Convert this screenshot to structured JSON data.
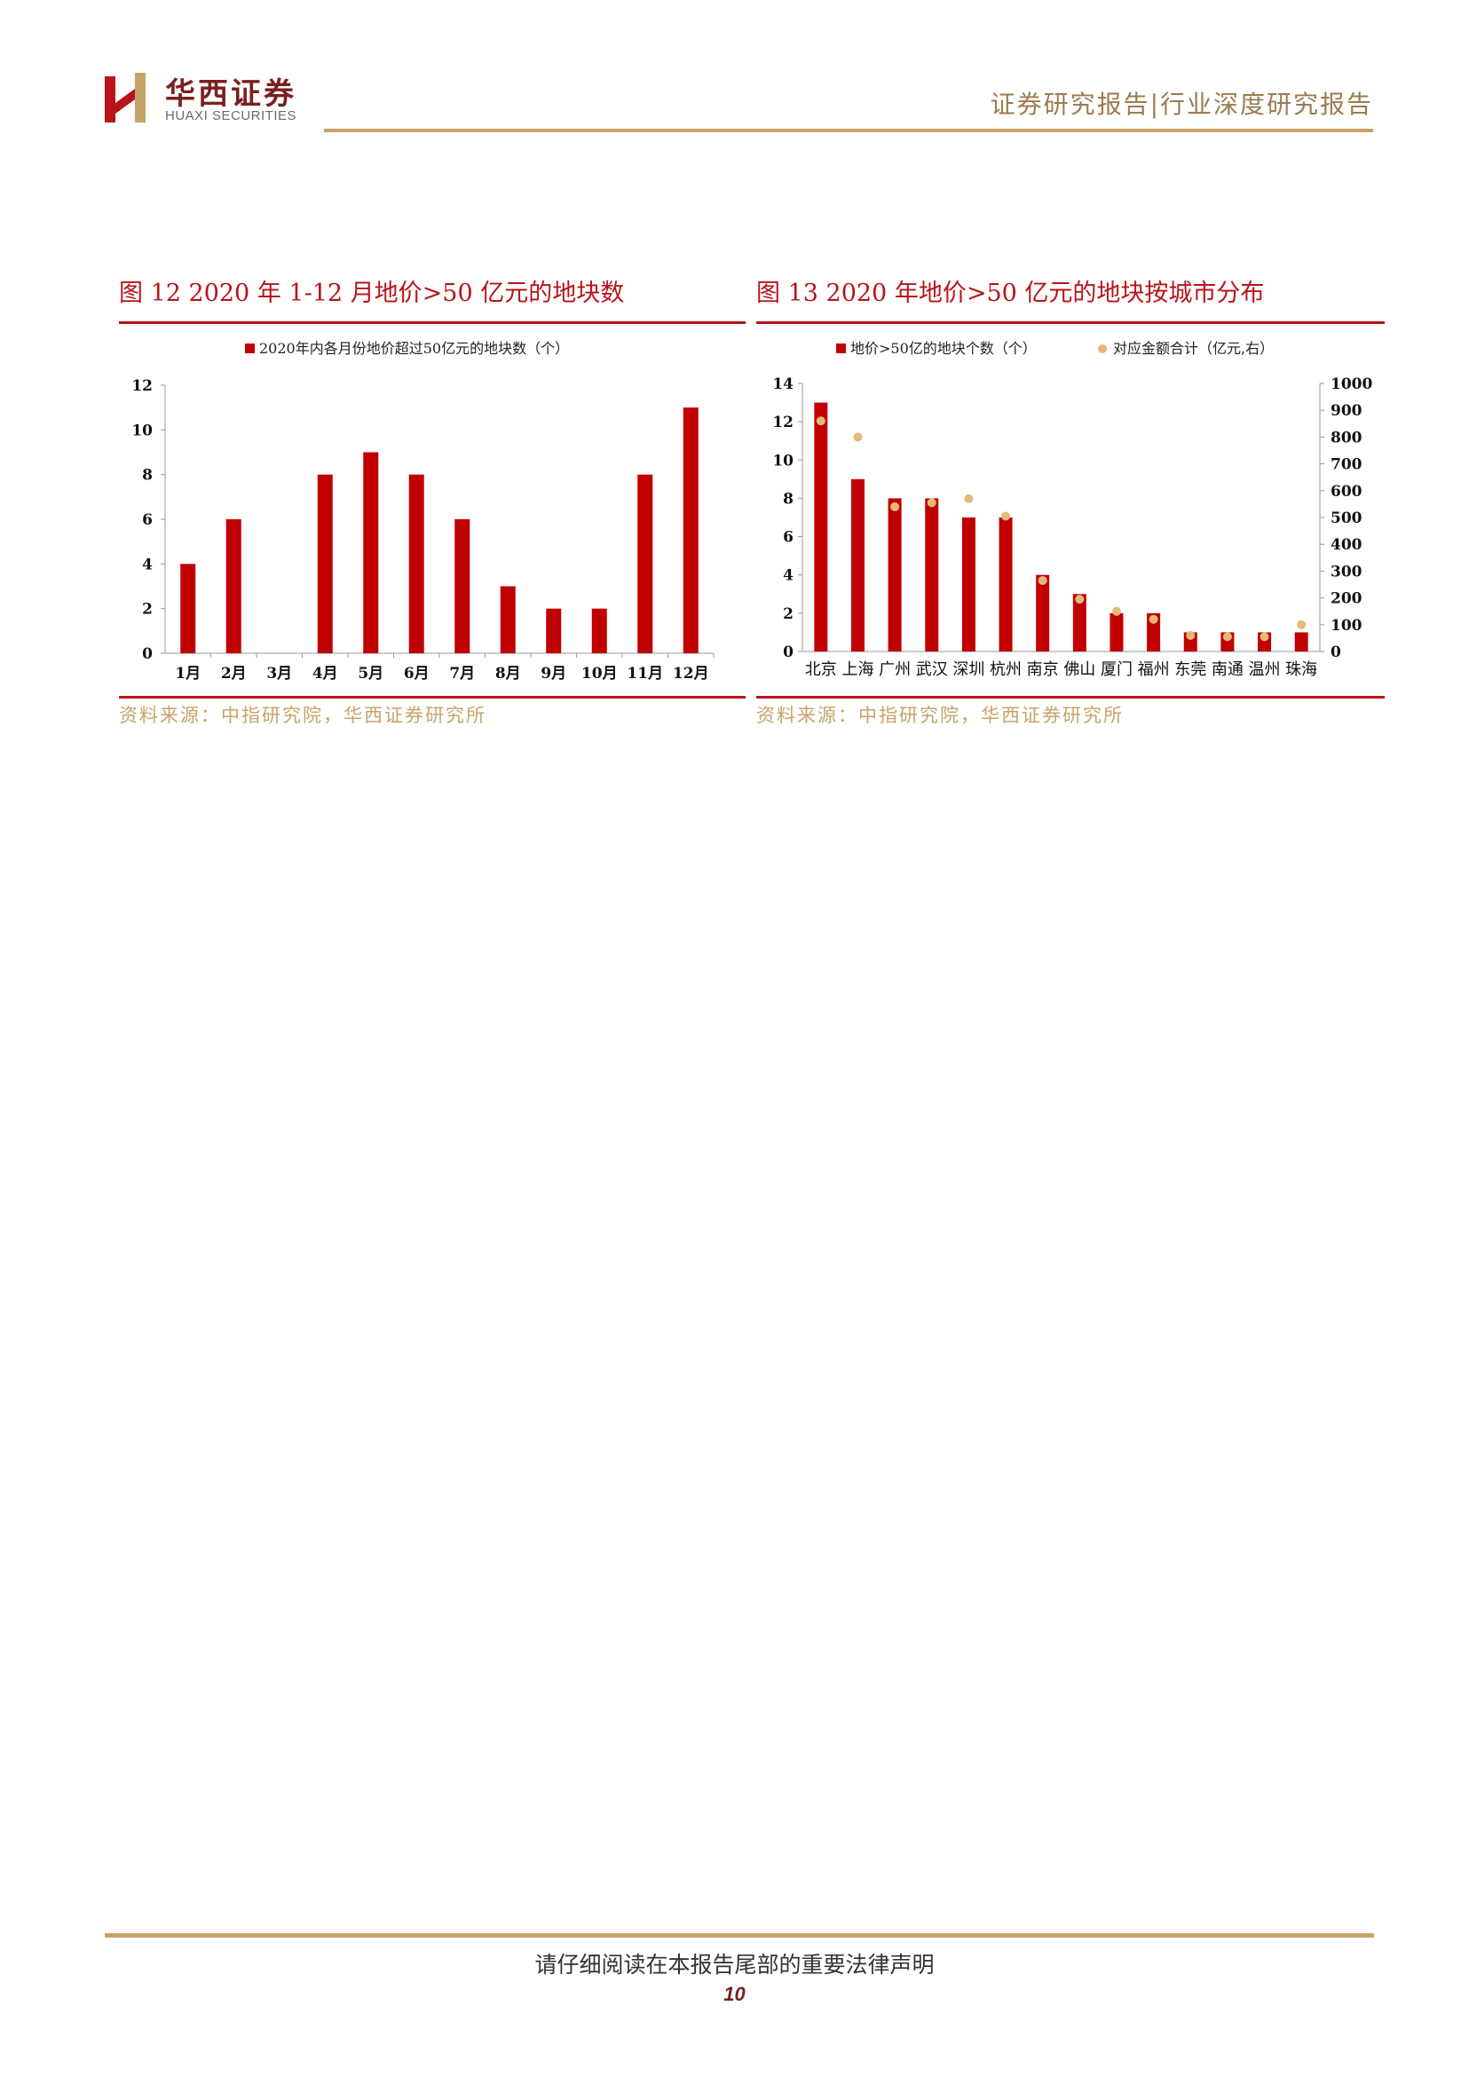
{
  "header": {
    "logo_cn": "华西证券",
    "logo_en": "HUAXI SECURITIES",
    "right_title": "证券研究报告|行业深度研究报告"
  },
  "colors": {
    "bar": "#c00000",
    "dot": "#e6b87a",
    "accent": "#b8141a",
    "gold": "#c7a36a"
  },
  "figures": [
    {
      "title": "图 12   2020 年 1-12 月地价>50 亿元的地块数",
      "source": "资料来源：中指研究院，华西证券研究所"
    },
    {
      "title": "图 13   2020 年地价>50 亿元的地块按城市分布",
      "source": "资料来源：中指研究院，华西证券研究所"
    }
  ],
  "chart_data": [
    {
      "type": "bar",
      "categories": [
        "1月",
        "2月",
        "3月",
        "4月",
        "5月",
        "6月",
        "7月",
        "8月",
        "9月",
        "10月",
        "11月",
        "12月"
      ],
      "series": [
        {
          "name": "2020年内各月份地价超过50亿元的地块数（个）",
          "values": [
            4,
            6,
            0,
            8,
            9,
            8,
            6,
            3,
            2,
            2,
            8,
            11
          ]
        }
      ],
      "ylim": [
        0,
        12
      ],
      "yticks": [
        0,
        2,
        4,
        6,
        8,
        10,
        12
      ],
      "grid": false,
      "legend": "top"
    },
    {
      "type": "bar",
      "categories": [
        "北京",
        "上海",
        "广州",
        "武汉",
        "深圳",
        "杭州",
        "南京",
        "佛山",
        "厦门",
        "福州",
        "东莞",
        "南通",
        "温州",
        "珠海"
      ],
      "series": [
        {
          "name": "地价>50亿的地块个数（个）",
          "type": "bar",
          "axis": "left",
          "values": [
            13,
            9,
            8,
            8,
            7,
            7,
            4,
            3,
            2,
            2,
            1,
            1,
            1,
            1
          ]
        },
        {
          "name": "对应金额合计（亿元,右）",
          "type": "scatter",
          "axis": "right",
          "values": [
            860,
            800,
            540,
            555,
            570,
            505,
            265,
            195,
            150,
            120,
            60,
            55,
            55,
            100
          ]
        }
      ],
      "ylim": [
        0,
        14
      ],
      "yticks": [
        0,
        2,
        4,
        6,
        8,
        10,
        12,
        14
      ],
      "y2lim": [
        0,
        1000
      ],
      "y2ticks": [
        0,
        100,
        200,
        300,
        400,
        500,
        600,
        700,
        800,
        900,
        1000
      ],
      "grid": false,
      "legend": "top"
    }
  ],
  "footer": {
    "disclaimer": "请仔细阅读在本报告尾部的重要法律声明",
    "page_number": "10"
  }
}
